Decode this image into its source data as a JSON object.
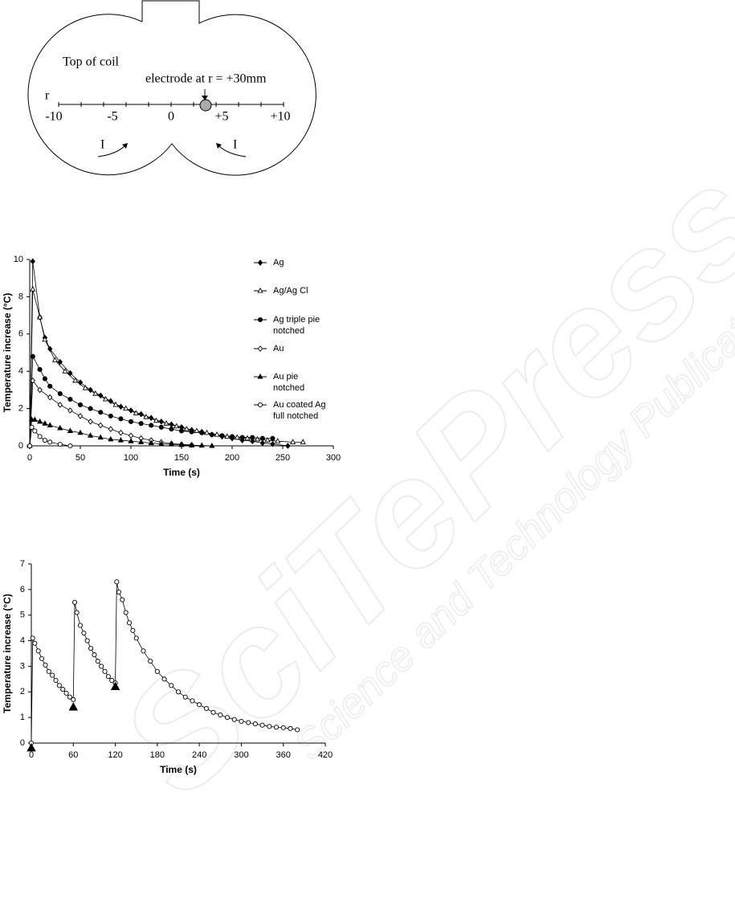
{
  "watermark": {
    "title": "SciTePress",
    "subtitle": "Science and Technology Publications"
  },
  "diagram": {
    "title": "Top of coil",
    "electrode": "electrode at r = +30mm",
    "axis_label": "r",
    "scale_labels": [
      "-10",
      "-5",
      "0",
      "+5",
      "+10"
    ],
    "current_labels": [
      "I",
      "I"
    ]
  },
  "chart_data": [
    {
      "type": "line",
      "x_label": "Time (s)",
      "y_label": "Temperature increase (°C)",
      "xlim": [
        0,
        300
      ],
      "xticks": [
        0,
        50,
        100,
        150,
        200,
        250,
        300
      ],
      "ylim": [
        0,
        10
      ],
      "yticks": [
        0,
        2,
        4,
        6,
        8,
        10
      ],
      "legend": "right",
      "series": [
        {
          "name": "Ag",
          "color": "#000000",
          "marker": "diamond",
          "filled": true,
          "x": [
            0,
            3,
            10,
            15,
            20,
            30,
            40,
            50,
            60,
            70,
            80,
            90,
            100,
            110,
            120,
            130,
            140,
            150,
            160,
            170,
            180,
            190,
            200,
            210,
            220,
            230,
            240,
            255
          ],
          "values": [
            0,
            9.9,
            6.9,
            5.8,
            5.2,
            4.5,
            3.9,
            3.4,
            3.0,
            2.7,
            2.4,
            2.1,
            1.9,
            1.7,
            1.5,
            1.3,
            1.15,
            1.0,
            0.85,
            0.75,
            0.6,
            0.5,
            0.4,
            0.3,
            0.25,
            0.15,
            0.1,
            0
          ]
        },
        {
          "name": "Ag/Ag Cl",
          "color": "#000000",
          "marker": "triangle",
          "filled": false,
          "x": [
            0,
            3,
            10,
            15,
            25,
            35,
            45,
            55,
            65,
            75,
            85,
            95,
            105,
            115,
            125,
            135,
            145,
            155,
            165,
            175,
            185,
            195,
            205,
            215,
            225,
            235,
            245,
            260,
            270
          ],
          "values": [
            0,
            8.4,
            6.9,
            5.7,
            4.6,
            4.0,
            3.5,
            3.1,
            2.8,
            2.5,
            2.2,
            2.0,
            1.75,
            1.55,
            1.35,
            1.2,
            1.05,
            0.9,
            0.8,
            0.7,
            0.6,
            0.5,
            0.45,
            0.4,
            0.35,
            0.3,
            0.25,
            0.2,
            0.2
          ]
        },
        {
          "name": "Ag triple pie\nnotched",
          "color": "#000000",
          "marker": "circle",
          "filled": true,
          "x": [
            0,
            3,
            10,
            15,
            20,
            30,
            40,
            50,
            60,
            70,
            80,
            90,
            100,
            110,
            120,
            130,
            140,
            150,
            160,
            170,
            180,
            190,
            200,
            210,
            220,
            230,
            240
          ],
          "values": [
            0,
            4.8,
            4.1,
            3.6,
            3.2,
            2.8,
            2.5,
            2.2,
            2.0,
            1.8,
            1.6,
            1.45,
            1.3,
            1.2,
            1.1,
            1.0,
            0.9,
            0.8,
            0.75,
            0.7,
            0.6,
            0.55,
            0.5,
            0.45,
            0.45,
            0.4,
            0.4
          ]
        },
        {
          "name": "Au",
          "color": "#000000",
          "marker": "diamond",
          "filled": false,
          "x": [
            0,
            3,
            10,
            20,
            30,
            40,
            50,
            60,
            70,
            80,
            90,
            100,
            110,
            120,
            130,
            140,
            150,
            160
          ],
          "values": [
            0,
            3.5,
            3.0,
            2.6,
            2.2,
            1.9,
            1.6,
            1.3,
            1.1,
            0.9,
            0.7,
            0.55,
            0.4,
            0.3,
            0.2,
            0.12,
            0.08,
            0.05
          ]
        },
        {
          "name": "Au pie\nnotched",
          "color": "#000000",
          "marker": "triangle",
          "filled": true,
          "x": [
            0,
            2,
            5,
            10,
            15,
            20,
            30,
            40,
            50,
            60,
            70,
            80,
            90,
            100,
            110,
            120,
            130,
            140,
            150,
            160,
            170,
            180
          ],
          "values": [
            0,
            1.4,
            1.4,
            1.3,
            1.2,
            1.1,
            0.95,
            0.8,
            0.7,
            0.55,
            0.45,
            0.35,
            0.3,
            0.25,
            0.2,
            0.15,
            0.1,
            0.08,
            0.05,
            0.03,
            0.02,
            0
          ]
        },
        {
          "name": "Au coated Ag\nfull notched",
          "color": "#000000",
          "marker": "circle",
          "filled": false,
          "x": [
            0,
            2,
            5,
            10,
            15,
            20,
            30,
            40
          ],
          "values": [
            0,
            1.0,
            0.8,
            0.5,
            0.3,
            0.2,
            0.08,
            0
          ]
        }
      ]
    },
    {
      "type": "line",
      "x_label": "Time (s)",
      "y_label": "Temperature increase (°C)",
      "xlim": [
        0,
        420
      ],
      "xticks": [
        0,
        60,
        120,
        180,
        240,
        300,
        360,
        420
      ],
      "ylim": [
        0,
        7
      ],
      "yticks": [
        0,
        1,
        2,
        3,
        4,
        5,
        6,
        7
      ],
      "series": [
        {
          "color": "#000000",
          "marker": "circle",
          "filled": false,
          "x": [
            0,
            2,
            5,
            10,
            15,
            20,
            25,
            30,
            35,
            40,
            45,
            50,
            55,
            60,
            62,
            65,
            70,
            75,
            80,
            85,
            90,
            95,
            100,
            105,
            110,
            115,
            120,
            122,
            125,
            130,
            135,
            140,
            145,
            150,
            160,
            170,
            180,
            190,
            200,
            210,
            220,
            230,
            240,
            250,
            260,
            270,
            280,
            290,
            300,
            310,
            320,
            330,
            340,
            350,
            360,
            370,
            380
          ],
          "values": [
            0,
            4.1,
            3.9,
            3.6,
            3.3,
            3.05,
            2.8,
            2.65,
            2.45,
            2.25,
            2.1,
            1.95,
            1.8,
            1.7,
            5.5,
            5.1,
            4.6,
            4.3,
            4.0,
            3.7,
            3.45,
            3.2,
            3.0,
            2.8,
            2.6,
            2.45,
            2.35,
            6.3,
            5.9,
            5.6,
            5.1,
            4.7,
            4.4,
            4.1,
            3.6,
            3.2,
            2.8,
            2.5,
            2.25,
            2.0,
            1.8,
            1.65,
            1.5,
            1.35,
            1.2,
            1.1,
            1.0,
            0.92,
            0.85,
            0.8,
            0.75,
            0.7,
            0.65,
            0.62,
            0.6,
            0.57,
            0.52
          ]
        }
      ],
      "events": {
        "color": "#000000",
        "x": [
          0,
          60,
          120
        ],
        "values": [
          -0.2,
          1.4,
          2.2
        ]
      }
    }
  ]
}
